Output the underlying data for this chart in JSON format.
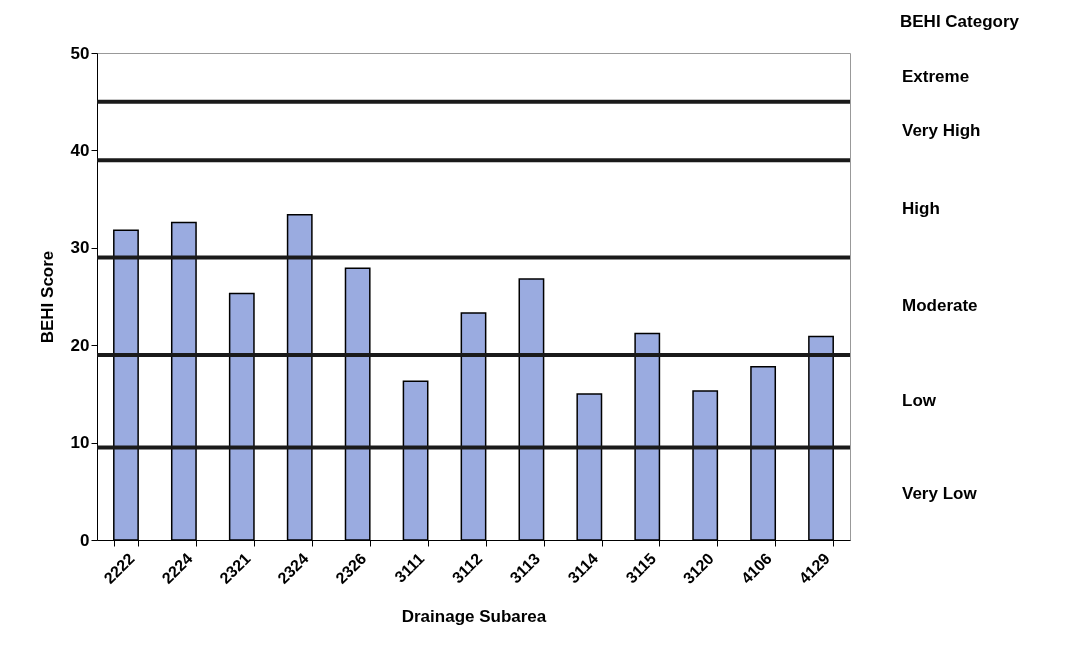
{
  "chart_data": {
    "type": "bar",
    "xlabel": "Drainage Subarea",
    "ylabel": "BEHI Score",
    "categories": [
      "2222",
      "2224",
      "2321",
      "2324",
      "2326",
      "3111",
      "3112",
      "3113",
      "3114",
      "3115",
      "3120",
      "4106",
      "4129"
    ],
    "values": [
      31.8,
      32.6,
      25.3,
      33.4,
      27.9,
      16.3,
      23.3,
      26.8,
      15.0,
      21.2,
      15.3,
      17.8,
      20.9
    ],
    "color": "#9aabe0",
    "ylim": [
      0,
      50
    ],
    "yticks": [
      0,
      10,
      20,
      30,
      40,
      50
    ],
    "grid": false,
    "ref_lines": [
      {
        "axis": "y",
        "value": 45
      },
      {
        "axis": "y",
        "value": 39
      },
      {
        "axis": "y",
        "value": 29
      },
      {
        "axis": "y",
        "value": 19
      },
      {
        "axis": "y",
        "value": 9.5
      }
    ],
    "annotations": [
      "BEHI Category",
      "Extreme",
      "Very High",
      "High",
      "Moderate",
      "Low",
      "Very Low"
    ]
  }
}
